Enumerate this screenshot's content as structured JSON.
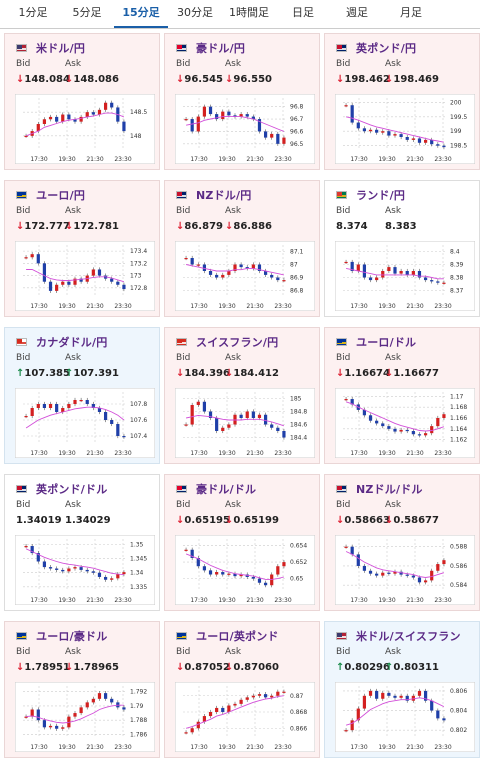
{
  "tabs": [
    "1分足",
    "5分足",
    "15分足",
    "30分足",
    "1時間足",
    "日足",
    "週足",
    "月足"
  ],
  "active_tab": 2,
  "labels": {
    "bid": "Bid",
    "ask": "Ask"
  },
  "cards": [
    {
      "pair": "米ドル/円",
      "flag": "us-flag-icon",
      "bid": "148.084",
      "ask": "148.086",
      "dir": "down",
      "chart_data": {
        "type": "line",
        "x_ticks": [
          "17:30",
          "19:30",
          "21:30",
          "23:30"
        ],
        "y_ticks": [
          "148.5",
          "148"
        ],
        "ylim": [
          147.7,
          148.8
        ],
        "values": [
          148.0,
          148.1,
          148.25,
          148.35,
          148.4,
          148.3,
          148.45,
          148.35,
          148.3,
          148.4,
          148.5,
          148.45,
          148.55,
          148.7,
          148.6,
          148.3,
          148.1
        ],
        "ma": [
          148.0,
          148.05,
          148.1,
          148.18,
          148.22,
          148.26,
          148.3,
          148.33,
          148.35,
          148.37,
          148.4,
          148.42,
          148.45,
          148.48,
          148.48,
          148.45,
          148.4
        ]
      }
    },
    {
      "pair": "豪ドル/円",
      "flag": "au-flag-icon",
      "bid": "96.545",
      "ask": "96.550",
      "dir": "down",
      "chart_data": {
        "type": "line",
        "x_ticks": [
          "17:30",
          "19:30",
          "21:30",
          "23:30"
        ],
        "y_ticks": [
          "96.8",
          "96.7",
          "96.6",
          "96.5"
        ],
        "ylim": [
          96.45,
          96.87
        ],
        "values": [
          96.7,
          96.6,
          96.72,
          96.8,
          96.74,
          96.7,
          96.76,
          96.73,
          96.72,
          96.74,
          96.72,
          96.7,
          96.6,
          96.55,
          96.58,
          96.5,
          96.55
        ],
        "ma": [
          96.65,
          96.66,
          96.67,
          96.69,
          96.7,
          96.71,
          96.72,
          96.72,
          96.72,
          96.72,
          96.71,
          96.7,
          96.68,
          96.66,
          96.64,
          96.62,
          96.6
        ]
      }
    },
    {
      "pair": "英ポンド/円",
      "flag": "uk-flag-icon",
      "bid": "198.462",
      "ask": "198.469",
      "dir": "down",
      "chart_data": {
        "type": "line",
        "x_ticks": [
          "17:30",
          "19:30",
          "21:30",
          "23:30"
        ],
        "y_ticks": [
          "200",
          "199.5",
          "199",
          "198.5"
        ],
        "ylim": [
          198.35,
          200.15
        ],
        "values": [
          199.9,
          199.3,
          199.1,
          199.0,
          199.05,
          198.95,
          199.0,
          198.85,
          198.9,
          198.8,
          198.7,
          198.75,
          198.6,
          198.7,
          198.55,
          198.5,
          198.45
        ],
        "ma": [
          199.5,
          199.45,
          199.38,
          199.3,
          199.22,
          199.15,
          199.1,
          199.05,
          199.0,
          198.95,
          198.9,
          198.85,
          198.8,
          198.75,
          198.7,
          198.66,
          198.62
        ]
      }
    },
    {
      "pair": "ユーロ/円",
      "flag": "eu-flag-icon",
      "bid": "172.777",
      "ask": "172.781",
      "dir": "down",
      "chart_data": {
        "type": "line",
        "x_ticks": [
          "17:30",
          "19:30",
          "21:30",
          "23:30"
        ],
        "y_ticks": [
          "173.4",
          "173.2",
          "173",
          "172.8"
        ],
        "ylim": [
          172.65,
          173.5
        ],
        "values": [
          173.3,
          173.35,
          173.2,
          172.9,
          172.75,
          172.85,
          172.9,
          172.85,
          172.95,
          172.9,
          173.0,
          173.1,
          173.0,
          172.95,
          172.9,
          172.85,
          172.78
        ],
        "ma": [
          173.1,
          173.1,
          173.05,
          173.0,
          172.95,
          172.93,
          172.92,
          172.92,
          172.93,
          172.94,
          172.95,
          172.97,
          172.98,
          172.98,
          172.96,
          172.93,
          172.9
        ]
      }
    },
    {
      "pair": "NZドル/円",
      "flag": "nz-flag-icon",
      "bid": "86.879",
      "ask": "86.886",
      "dir": "down",
      "chart_data": {
        "type": "line",
        "x_ticks": [
          "17:30",
          "19:30",
          "21:30",
          "23:30"
        ],
        "y_ticks": [
          "87.1",
          "87",
          "86.9",
          "86.8"
        ],
        "ylim": [
          86.75,
          87.15
        ],
        "values": [
          87.05,
          87.0,
          87.0,
          86.95,
          86.92,
          86.9,
          86.92,
          86.95,
          87.0,
          86.98,
          86.97,
          87.0,
          86.95,
          86.92,
          86.9,
          86.88,
          86.88
        ],
        "ma": [
          87.0,
          86.99,
          86.98,
          86.97,
          86.96,
          86.95,
          86.95,
          86.95,
          86.96,
          86.96,
          86.97,
          86.97,
          86.96,
          86.95,
          86.94,
          86.93,
          86.92
        ]
      }
    },
    {
      "pair": "ランド/円",
      "flag": "za-flag-icon",
      "bid": "8.374",
      "ask": "8.383",
      "dir": "none",
      "chart_data": {
        "type": "line",
        "x_ticks": [
          "17:30",
          "19:30",
          "21:30",
          "23:30"
        ],
        "y_ticks": [
          "8.4",
          "8.39",
          "8.38",
          "8.37"
        ],
        "ylim": [
          8.365,
          8.405
        ],
        "values": [
          8.392,
          8.385,
          8.39,
          8.38,
          8.378,
          8.38,
          8.385,
          8.388,
          8.383,
          8.385,
          8.382,
          8.385,
          8.38,
          8.378,
          8.377,
          8.376,
          8.376
        ],
        "ma": [
          8.387,
          8.386,
          8.385,
          8.384,
          8.383,
          8.382,
          8.382,
          8.382,
          8.382,
          8.382,
          8.382,
          8.382,
          8.381,
          8.381,
          8.38,
          8.379,
          8.379
        ]
      }
    },
    {
      "pair": "カナダドル/円",
      "flag": "ca-flag-icon",
      "bid": "107.385",
      "ask": "107.391",
      "dir": "up",
      "chart_data": {
        "type": "line",
        "x_ticks": [
          "17:30",
          "19:30",
          "21:30",
          "23:30"
        ],
        "y_ticks": [
          "107.8",
          "107.6",
          "107.4"
        ],
        "ylim": [
          107.3,
          107.95
        ],
        "values": [
          107.65,
          107.75,
          107.8,
          107.75,
          107.8,
          107.7,
          107.75,
          107.8,
          107.85,
          107.85,
          107.8,
          107.75,
          107.7,
          107.6,
          107.55,
          107.4,
          107.39
        ],
        "ma": [
          107.5,
          107.55,
          107.6,
          107.63,
          107.66,
          107.68,
          107.7,
          107.72,
          107.74,
          107.75,
          107.76,
          107.76,
          107.75,
          107.73,
          107.7,
          107.66,
          107.6
        ]
      }
    },
    {
      "pair": "スイスフラン/円",
      "flag": "ch-flag-icon",
      "bid": "184.396",
      "ask": "184.412",
      "dir": "down",
      "chart_data": {
        "type": "line",
        "x_ticks": [
          "17:30",
          "19:30",
          "21:30",
          "23:30"
        ],
        "y_ticks": [
          "185",
          "184.8",
          "184.6",
          "184.4"
        ],
        "ylim": [
          184.3,
          185.1
        ],
        "values": [
          184.6,
          184.9,
          184.95,
          184.8,
          184.7,
          184.5,
          184.55,
          184.6,
          184.75,
          184.7,
          184.8,
          184.7,
          184.75,
          184.6,
          184.55,
          184.5,
          184.4
        ],
        "ma": [
          184.7,
          184.72,
          184.74,
          184.73,
          184.72,
          184.7,
          184.68,
          184.67,
          184.67,
          184.67,
          184.68,
          184.68,
          184.68,
          184.66,
          184.64,
          184.61,
          184.58
        ]
      }
    },
    {
      "pair": "ユーロ/ドル",
      "flag": "eu-us-flag-icon",
      "bid": "1.16674",
      "ask": "1.16677",
      "dir": "down",
      "chart_data": {
        "type": "line",
        "x_ticks": [
          "17:30",
          "19:30",
          "21:30",
          "23:30"
        ],
        "y_ticks": [
          "1.17",
          "1.168",
          "1.166",
          "1.164",
          "1.162"
        ],
        "ylim": [
          1.1612,
          1.1708
        ],
        "values": [
          1.1695,
          1.1685,
          1.1675,
          1.1665,
          1.1655,
          1.165,
          1.1645,
          1.164,
          1.1635,
          1.1638,
          1.1636,
          1.163,
          1.1628,
          1.1632,
          1.1645,
          1.166,
          1.1667
        ],
        "ma": [
          1.169,
          1.1686,
          1.168,
          1.1675,
          1.167,
          1.1665,
          1.166,
          1.1655,
          1.165,
          1.1646,
          1.1643,
          1.164,
          1.1637,
          1.1636,
          1.1637,
          1.164,
          1.1644
        ]
      }
    },
    {
      "pair": "英ポンド/ドル",
      "flag": "uk-us-flag-icon",
      "bid": "1.34019",
      "ask": "1.34029",
      "dir": "none",
      "chart_data": {
        "type": "line",
        "x_ticks": [
          "17:30",
          "19:30",
          "21:30",
          "23:30"
        ],
        "y_ticks": [
          "1.35",
          "1.345",
          "1.34",
          "1.335"
        ],
        "ylim": [
          1.3335,
          1.352
        ],
        "values": [
          1.3495,
          1.347,
          1.344,
          1.342,
          1.3415,
          1.341,
          1.3405,
          1.3415,
          1.342,
          1.341,
          1.3405,
          1.34,
          1.3385,
          1.3375,
          1.338,
          1.3395,
          1.3402
        ],
        "ma": [
          1.3485,
          1.3475,
          1.3465,
          1.3455,
          1.3447,
          1.344,
          1.3434,
          1.343,
          1.3427,
          1.3423,
          1.342,
          1.3416,
          1.341,
          1.3404,
          1.3398,
          1.3395,
          1.3393
        ]
      }
    },
    {
      "pair": "豪ドル/ドル",
      "flag": "au-us-flag-icon",
      "bid": "0.65195",
      "ask": "0.65199",
      "dir": "down",
      "chart_data": {
        "type": "line",
        "x_ticks": [
          "17:30",
          "19:30",
          "21:30",
          "23:30"
        ],
        "y_ticks": [
          "0.654",
          "0.652",
          "0.65"
        ],
        "ylim": [
          0.6485,
          0.6548
        ],
        "values": [
          0.6535,
          0.6525,
          0.6515,
          0.651,
          0.6505,
          0.6508,
          0.6505,
          0.6506,
          0.6503,
          0.6505,
          0.6502,
          0.65,
          0.6495,
          0.6492,
          0.6505,
          0.6515,
          0.652
        ],
        "ma": [
          0.653,
          0.6527,
          0.6524,
          0.652,
          0.6516,
          0.6513,
          0.651,
          0.6508,
          0.6506,
          0.6505,
          0.6504,
          0.6503,
          0.6501,
          0.6499,
          0.6499,
          0.65,
          0.6502
        ]
      }
    },
    {
      "pair": "NZドル/ドル",
      "flag": "nz-us-flag-icon",
      "bid": "0.58663",
      "ask": "0.58677",
      "dir": "down",
      "chart_data": {
        "type": "line",
        "x_ticks": [
          "17:30",
          "19:30",
          "21:30",
          "23:30"
        ],
        "y_ticks": [
          "0.588",
          "0.586",
          "0.584"
        ],
        "ylim": [
          0.5834,
          0.5888
        ],
        "values": [
          0.588,
          0.5872,
          0.586,
          0.5855,
          0.5852,
          0.585,
          0.5853,
          0.5852,
          0.5854,
          0.5851,
          0.585,
          0.5848,
          0.5843,
          0.5845,
          0.5855,
          0.5862,
          0.5866
        ],
        "ma": [
          0.5875,
          0.5872,
          0.5868,
          0.5864,
          0.5861,
          0.5858,
          0.5856,
          0.5855,
          0.5854,
          0.5853,
          0.5852,
          0.5851,
          0.5849,
          0.5848,
          0.5849,
          0.5851,
          0.5853
        ]
      }
    },
    {
      "pair": "ユーロ/豪ドル",
      "flag": "eu-au-flag-icon",
      "bid": "1.78951",
      "ask": "1.78965",
      "dir": "down",
      "chart_data": {
        "type": "line",
        "x_ticks": [
          "17:30",
          "19:30",
          "21:30",
          "23:30"
        ],
        "y_ticks": [
          "1.792",
          "1.79",
          "1.788",
          "1.786"
        ],
        "ylim": [
          1.7855,
          1.7928
        ],
        "values": [
          1.7885,
          1.7895,
          1.788,
          1.787,
          1.7872,
          1.7868,
          1.787,
          1.7885,
          1.789,
          1.7898,
          1.7905,
          1.791,
          1.7918,
          1.791,
          1.7905,
          1.7898,
          1.7895
        ],
        "ma": [
          1.7885,
          1.7886,
          1.7884,
          1.7881,
          1.7879,
          1.7877,
          1.7876,
          1.7877,
          1.7879,
          1.7882,
          1.7886,
          1.789,
          1.7895,
          1.7898,
          1.79,
          1.7901,
          1.7901
        ]
      }
    },
    {
      "pair": "ユーロ/英ポンド",
      "flag": "eu-uk-flag-icon",
      "bid": "0.87052",
      "ask": "0.87060",
      "dir": "down",
      "chart_data": {
        "type": "line",
        "x_ticks": [
          "17:30",
          "19:30",
          "21:30",
          "23:30"
        ],
        "y_ticks": [
          "0.87",
          "0.868",
          "0.866"
        ],
        "ylim": [
          0.8648,
          0.8712
        ],
        "values": [
          0.8655,
          0.866,
          0.8668,
          0.8675,
          0.868,
          0.8685,
          0.868,
          0.8688,
          0.869,
          0.8695,
          0.8698,
          0.87,
          0.8702,
          0.8698,
          0.87,
          0.8705,
          0.8705
        ],
        "ma": [
          0.866,
          0.8662,
          0.8665,
          0.8668,
          0.8671,
          0.8675,
          0.8677,
          0.868,
          0.8683,
          0.8686,
          0.8689,
          0.8692,
          0.8694,
          0.8696,
          0.8697,
          0.8699,
          0.87
        ]
      }
    },
    {
      "pair": "米ドル/スイスフラン",
      "flag": "us-ch-flag-icon",
      "bid": "0.80296",
      "ask": "0.80311",
      "dir": "up",
      "chart_data": {
        "type": "line",
        "x_ticks": [
          "17:30",
          "19:30",
          "21:30",
          "23:30"
        ],
        "y_ticks": [
          "0.806",
          "0.804",
          "0.802"
        ],
        "ylim": [
          0.8012,
          0.8065
        ],
        "values": [
          0.802,
          0.803,
          0.8042,
          0.8055,
          0.806,
          0.8052,
          0.8058,
          0.8055,
          0.8053,
          0.8055,
          0.805,
          0.8055,
          0.806,
          0.805,
          0.804,
          0.8032,
          0.803
        ],
        "ma": [
          0.8025,
          0.8027,
          0.8031,
          0.8036,
          0.8041,
          0.8044,
          0.8047,
          0.8049,
          0.805,
          0.8051,
          0.8051,
          0.8052,
          0.8053,
          0.8052,
          0.805,
          0.8047,
          0.8044
        ]
      }
    }
  ]
}
